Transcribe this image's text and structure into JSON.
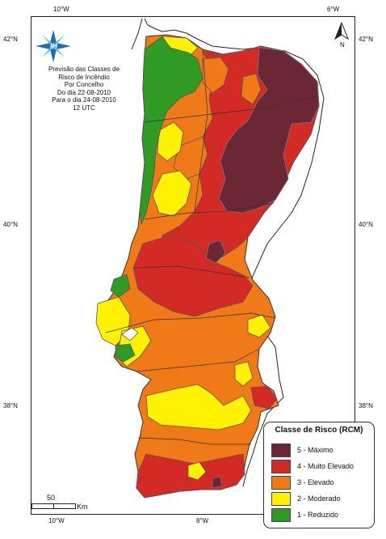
{
  "map": {
    "title_lines": [
      "Previsão das Classes de",
      "Risco de Incêndio",
      "Por Concelho",
      "Do dia 22-08-2010",
      "Para o dia 24-08-2010",
      "12 UTC"
    ],
    "longitude_ticks_top": [
      "10°W",
      "6°W"
    ],
    "longitude_ticks_bottom": [
      "10°W",
      "8°W"
    ],
    "latitude_ticks_left": [
      "42°N",
      "40°N",
      "38°N"
    ],
    "latitude_ticks_right": [
      "42°N",
      "40°N",
      "38°N"
    ],
    "logo_text": "IH",
    "north_label": "N",
    "scale": {
      "value": "50",
      "unit": "Km"
    }
  },
  "legend": {
    "title": "Classe de Risco (RCM)",
    "items": [
      {
        "label": "5 - Máximo",
        "color": "#6b2736"
      },
      {
        "label": "4 - Muito Elevado",
        "color": "#d42a25"
      },
      {
        "label": "3 - Elevado",
        "color": "#f07a18"
      },
      {
        "label": "2 - Moderado",
        "color": "#fff200"
      },
      {
        "label": "1 - Reduzido",
        "color": "#2f9a24"
      }
    ]
  },
  "colors": {
    "sea": "#ffffff",
    "border": "#555555",
    "neighbour_border": "#222222"
  }
}
